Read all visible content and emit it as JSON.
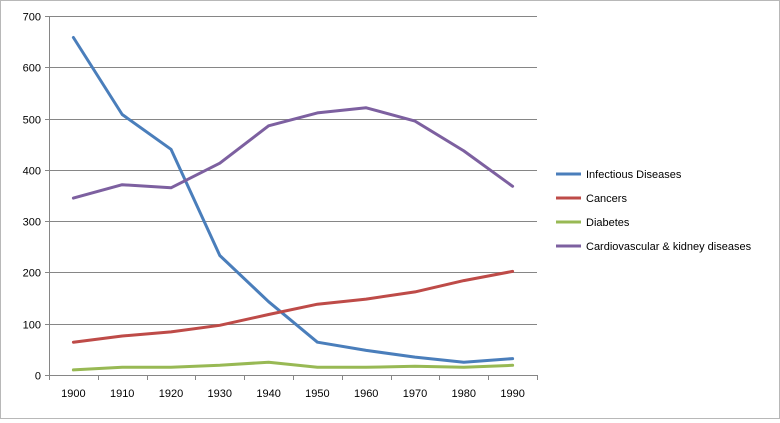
{
  "chart_data": {
    "type": "line",
    "title": "",
    "xlabel": "",
    "ylabel": "",
    "categories": [
      "1900",
      "1910",
      "1920",
      "1930",
      "1940",
      "1950",
      "1960",
      "1970",
      "1980",
      "1990"
    ],
    "ylim": [
      0,
      700
    ],
    "yticks": [
      0,
      100,
      200,
      300,
      400,
      500,
      600,
      700
    ],
    "grid": "horizontal",
    "legend_position": "right",
    "series": [
      {
        "name": "Infectious Diseases",
        "color": "#4a7ebb",
        "values": [
          658,
          508,
          440,
          233,
          143,
          64,
          48,
          35,
          25,
          32
        ]
      },
      {
        "name": "Cancers",
        "color": "#be4b48",
        "values": [
          64,
          76,
          84,
          97,
          118,
          138,
          148,
          162,
          184,
          202
        ]
      },
      {
        "name": "Diabetes",
        "color": "#98b954",
        "values": [
          10,
          15,
          15,
          19,
          25,
          15,
          15,
          17,
          15,
          19
        ]
      },
      {
        "name": "Cardiovascular & kidney diseases",
        "color": "#7d60a0",
        "values": [
          345,
          371,
          365,
          413,
          486,
          511,
          521,
          495,
          437,
          368
        ]
      }
    ]
  }
}
